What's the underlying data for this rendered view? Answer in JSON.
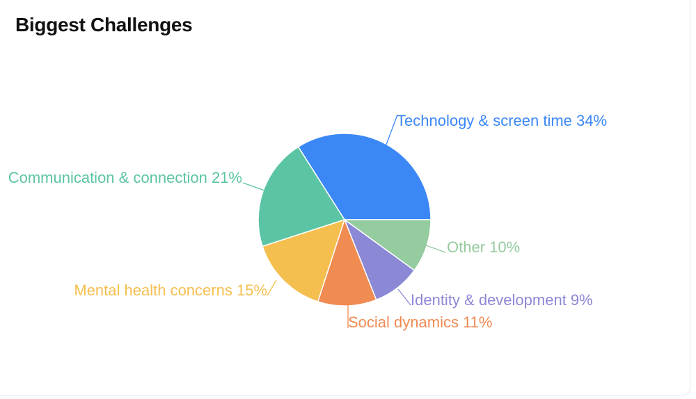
{
  "card": {
    "title": "Biggest Challenges"
  },
  "chart_data": {
    "type": "pie",
    "title": "Biggest Challenges",
    "slices": [
      {
        "label": "Technology & screen time",
        "value": 34,
        "display": "Technology & screen time 34%",
        "color": "#3b87f6"
      },
      {
        "label": "Other",
        "value": 10,
        "display": "Other 10%",
        "color": "#94cb9f"
      },
      {
        "label": "Identity & development",
        "value": 9,
        "display": "Identity & development 9%",
        "color": "#8b88d6"
      },
      {
        "label": "Social dynamics",
        "value": 11,
        "display": "Social dynamics 11%",
        "color": "#f08b52"
      },
      {
        "label": "Mental health concerns",
        "value": 15,
        "display": "Mental health concerns 15%",
        "color": "#f5bf4f"
      },
      {
        "label": "Communication & connection",
        "value": 21,
        "display": "Communication & connection 21%",
        "color": "#5bc4a4"
      }
    ]
  }
}
